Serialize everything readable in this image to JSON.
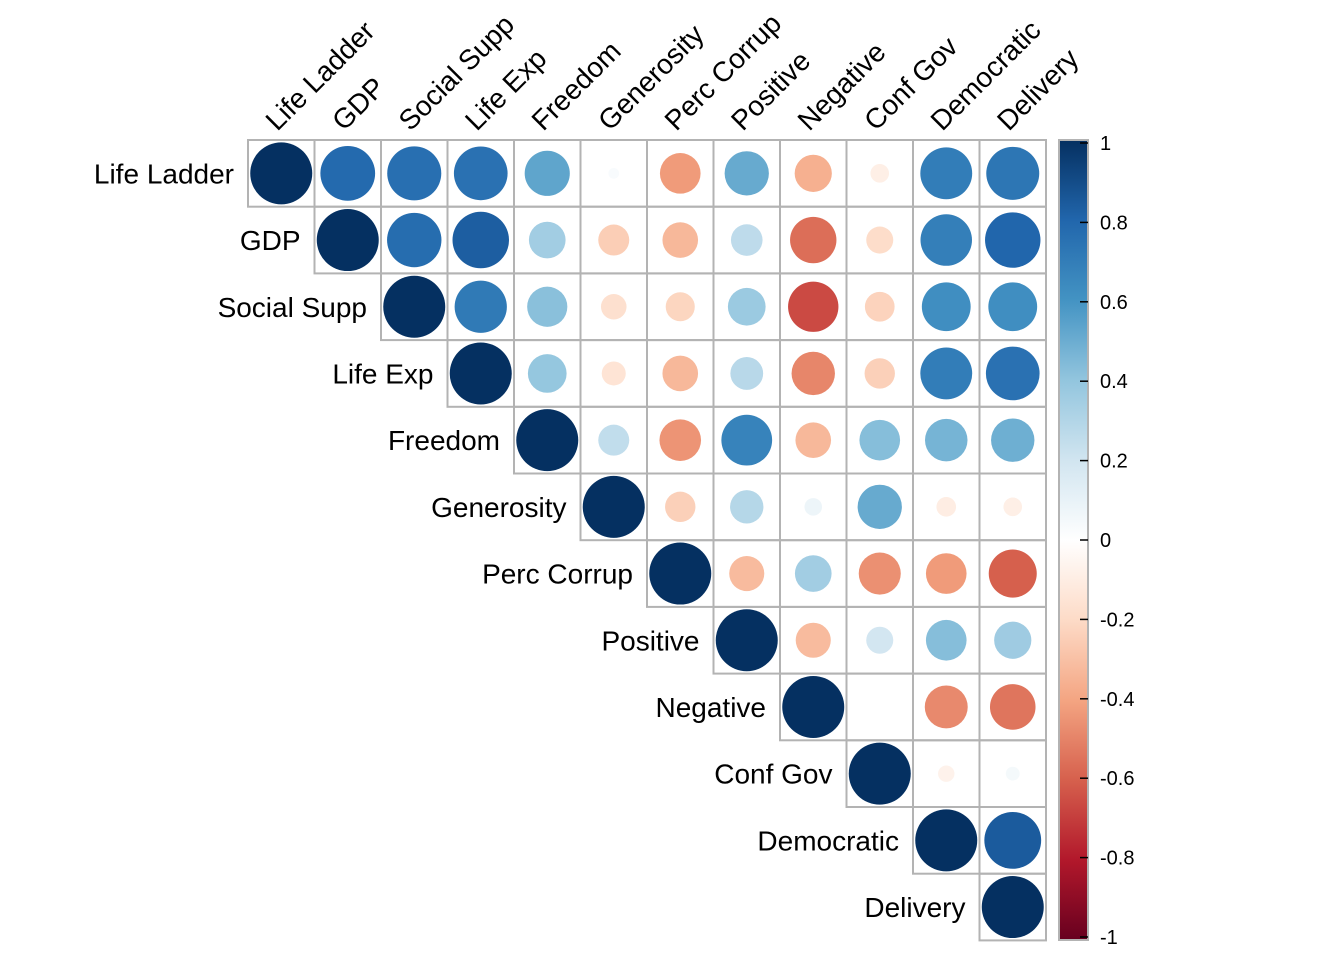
{
  "chart_data": {
    "type": "heatmap",
    "subtype": "correlation-circle-upper",
    "variables": [
      "Life Ladder",
      "GDP",
      "Social Supp",
      "Life Exp",
      "Freedom",
      "Generosity",
      "Perc Corrup",
      "Positive",
      "Negative",
      "Conf Gov",
      "Democratic",
      "Delivery"
    ],
    "matrix": [
      [
        1.0,
        0.78,
        0.76,
        0.75,
        0.53,
        0.03,
        -0.43,
        0.51,
        -0.36,
        -0.09,
        0.7,
        0.73
      ],
      [
        0.78,
        1.0,
        0.77,
        0.83,
        0.35,
        -0.25,
        -0.33,
        0.26,
        -0.56,
        -0.19,
        0.69,
        0.8
      ],
      [
        0.76,
        0.77,
        1.0,
        0.71,
        0.42,
        -0.17,
        -0.22,
        0.37,
        -0.66,
        -0.23,
        0.62,
        0.62
      ],
      [
        0.75,
        0.83,
        0.71,
        1.0,
        0.39,
        -0.15,
        -0.33,
        0.28,
        -0.49,
        -0.24,
        0.7,
        0.75
      ],
      [
        0.53,
        0.35,
        0.42,
        0.39,
        1.0,
        0.25,
        -0.45,
        0.67,
        -0.33,
        0.43,
        0.47,
        0.49
      ],
      [
        0.03,
        -0.25,
        -0.17,
        -0.15,
        0.25,
        1.0,
        -0.24,
        0.29,
        0.08,
        0.51,
        -0.1,
        -0.09
      ],
      [
        -0.43,
        -0.33,
        -0.22,
        -0.33,
        -0.45,
        -0.24,
        1.0,
        -0.32,
        0.35,
        -0.46,
        -0.43,
        -0.6
      ],
      [
        0.51,
        0.26,
        0.37,
        0.28,
        0.67,
        0.29,
        -0.32,
        1.0,
        -0.32,
        0.19,
        0.43,
        0.36
      ],
      [
        -0.36,
        -0.56,
        -0.66,
        -0.49,
        -0.33,
        0.08,
        0.35,
        -0.32,
        1.0,
        0.0,
        -0.48,
        -0.54
      ],
      [
        -0.09,
        -0.19,
        -0.23,
        -0.24,
        0.43,
        0.51,
        -0.46,
        0.19,
        0.0,
        1.0,
        -0.07,
        0.05
      ],
      [
        0.7,
        0.69,
        0.62,
        0.7,
        0.47,
        -0.1,
        -0.43,
        0.43,
        -0.48,
        -0.07,
        1.0,
        0.84
      ],
      [
        0.73,
        0.8,
        0.62,
        0.75,
        0.49,
        -0.09,
        -0.6,
        0.36,
        -0.54,
        0.05,
        0.84,
        1.0
      ]
    ],
    "colorbar": {
      "range": [
        -1,
        1
      ],
      "ticks": [
        "1",
        "0.8",
        "0.6",
        "0.4",
        "0.2",
        "0",
        "-0.2",
        "-0.4",
        "-0.6",
        "-0.8",
        "-1"
      ],
      "colors": [
        "#67001F",
        "#B2182B",
        "#D6604D",
        "#F4A582",
        "#FDDBC7",
        "#FFFFFF",
        "#D1E5F0",
        "#92C5DE",
        "#4393C3",
        "#2166AC",
        "#053061"
      ]
    }
  }
}
